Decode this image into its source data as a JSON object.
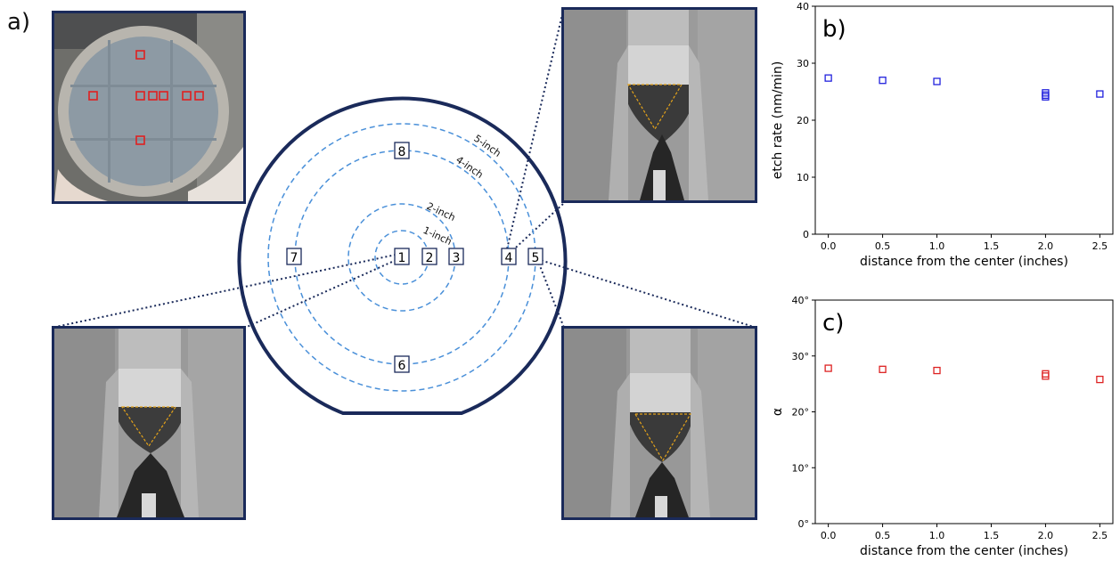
{
  "panels": {
    "a": "a)",
    "b": "b)",
    "c": "c)"
  },
  "wafer": {
    "rings": [
      "1-inch",
      "2-inch",
      "4-inch",
      "5-inch"
    ],
    "sites": [
      "1",
      "2",
      "3",
      "4",
      "5",
      "6",
      "7",
      "8"
    ]
  },
  "colors": {
    "navy": "#1a2a5a",
    "ring": "#4a90d9",
    "outline": "#e3a21a",
    "blue": "#2222dd",
    "red": "#dd2222"
  },
  "chart_data": [
    {
      "type": "scatter",
      "panel": "b)",
      "xlabel": "distance from the center (inches)",
      "ylabel": "etch rate (nm/min)",
      "xlim": [
        -0.12,
        2.62
      ],
      "ylim": [
        0,
        40
      ],
      "xticks": [
        "0.0",
        "0.5",
        "1.0",
        "1.5",
        "2.0",
        "2.5"
      ],
      "yticks": [
        "0",
        "10",
        "20",
        "30",
        "40"
      ],
      "series": [
        {
          "color": "#2222dd",
          "x": [
            0.0,
            0.5,
            1.0,
            2.0,
            2.0,
            2.0,
            2.5
          ],
          "y": [
            27.4,
            27.0,
            26.8,
            24.8,
            24.4,
            24.1,
            24.6
          ]
        }
      ]
    },
    {
      "type": "scatter",
      "panel": "c)",
      "xlabel": "distance from the center (inches)",
      "ylabel": "α",
      "xlim": [
        -0.12,
        2.62
      ],
      "ylim": [
        0,
        40
      ],
      "xticks": [
        "0.0",
        "0.5",
        "1.0",
        "1.5",
        "2.0",
        "2.5"
      ],
      "yticks": [
        "0°",
        "10°",
        "20°",
        "30°",
        "40°"
      ],
      "series": [
        {
          "color": "#dd2222",
          "x": [
            0.0,
            0.5,
            1.0,
            2.0,
            2.0,
            2.5
          ],
          "y": [
            27.8,
            27.6,
            27.4,
            26.8,
            26.4,
            25.8
          ]
        }
      ]
    }
  ]
}
